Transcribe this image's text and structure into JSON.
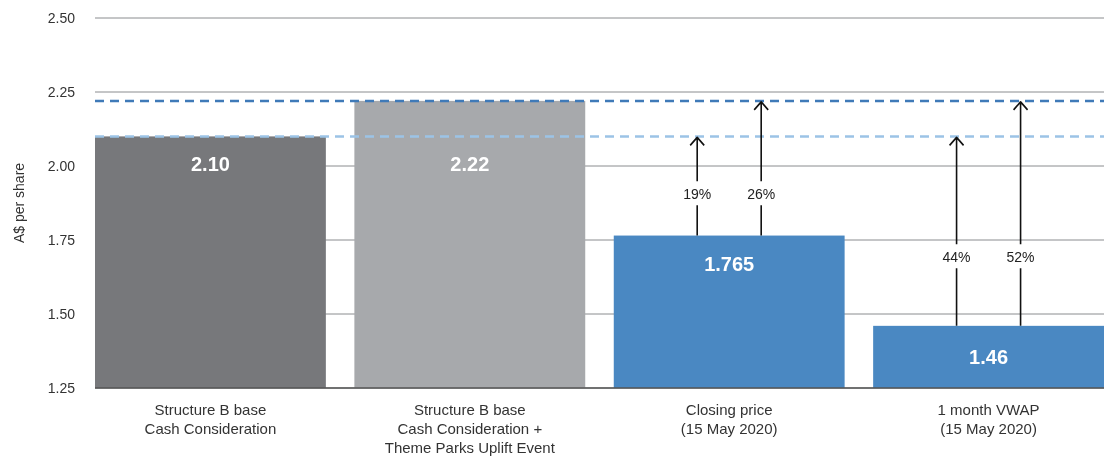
{
  "chart_data": {
    "type": "bar",
    "ylabel": "A$ per share",
    "categories": [
      "Structure B base\nCash Consideration",
      "Structure B base\nCash Consideration +\nTheme Parks Uplift Event",
      "Closing price\n(15 May 2020)",
      "1 month VWAP\n(15 May 2020)"
    ],
    "values": [
      2.1,
      2.22,
      1.765,
      1.46
    ],
    "colors": [
      "#77787b",
      "#a7a9ac",
      "#4a88c2",
      "#4a88c2"
    ],
    "value_labels": [
      "2.10",
      "2.22",
      "1.765",
      "1.46"
    ],
    "ylim": [
      1.25,
      2.5
    ],
    "yticks": [
      {
        "value": 1.25,
        "label": "1.25"
      },
      {
        "value": 1.5,
        "label": "1.50"
      },
      {
        "value": 1.75,
        "label": "1.75"
      },
      {
        "value": 2.0,
        "label": "2.00"
      },
      {
        "value": 2.25,
        "label": "2.25"
      },
      {
        "value": 2.5,
        "label": "2.50"
      }
    ],
    "grid": "y",
    "ref_lines": [
      {
        "axis": "y",
        "value": 2.1,
        "color": "#9cc3e6",
        "line_style": "dashed"
      },
      {
        "axis": "y",
        "value": 2.22,
        "color": "#3f7ab8",
        "line_style": "dashed"
      }
    ],
    "annotations": [
      {
        "text": "19%",
        "y": 2.1
      },
      {
        "text": "26%",
        "y": 2.22
      },
      {
        "text": "44%",
        "y": 2.1
      },
      {
        "text": "52%",
        "y": 2.22
      }
    ]
  }
}
